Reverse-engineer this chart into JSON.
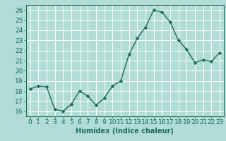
{
  "x": [
    0,
    1,
    2,
    3,
    4,
    5,
    6,
    7,
    8,
    9,
    10,
    11,
    12,
    13,
    14,
    15,
    16,
    17,
    18,
    19,
    20,
    21,
    22,
    23
  ],
  "y": [
    18.2,
    18.5,
    18.4,
    16.2,
    16.0,
    16.7,
    18.0,
    17.5,
    16.6,
    17.3,
    18.5,
    19.0,
    21.6,
    23.2,
    24.3,
    26.0,
    25.8,
    24.8,
    23.0,
    22.1,
    20.8,
    21.1,
    20.9,
    21.8
  ],
  "line_color": "#1a6b5a",
  "marker": "D",
  "marker_size": 2.2,
  "bg_color": "#b2ddd6",
  "grid_color": "#ffffff",
  "xlabel": "Humidex (Indice chaleur)",
  "xlim": [
    -0.5,
    23.5
  ],
  "ylim": [
    15.5,
    26.5
  ],
  "yticks": [
    16,
    17,
    18,
    19,
    20,
    21,
    22,
    23,
    24,
    25,
    26
  ],
  "xticks": [
    0,
    1,
    2,
    3,
    4,
    5,
    6,
    7,
    8,
    9,
    10,
    11,
    12,
    13,
    14,
    15,
    16,
    17,
    18,
    19,
    20,
    21,
    22,
    23
  ],
  "xlabel_fontsize": 7,
  "tick_fontsize": 6.5,
  "linewidth": 1.0,
  "tick_color": "#1a6b5a",
  "label_color": "#1a6b5a",
  "spine_color": "#1a6b5a"
}
